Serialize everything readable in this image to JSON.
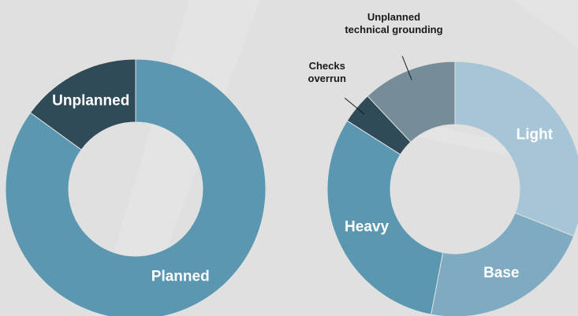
{
  "chart_data": [
    {
      "type": "pie",
      "categories": [
        "Planned",
        "Unplanned"
      ],
      "values": [
        85,
        15
      ],
      "colors": [
        "#5b97b1",
        "#2f4b57"
      ]
    },
    {
      "type": "pie",
      "categories": [
        "Light",
        "Base",
        "Heavy",
        "Checks overrun",
        "Unplanned technical grounding"
      ],
      "values": [
        31,
        22,
        31,
        4,
        12
      ],
      "colors": [
        "#a6c5d6",
        "#7eabc2",
        "#5b97b1",
        "#2f4b57",
        "#748d99"
      ]
    }
  ]
}
